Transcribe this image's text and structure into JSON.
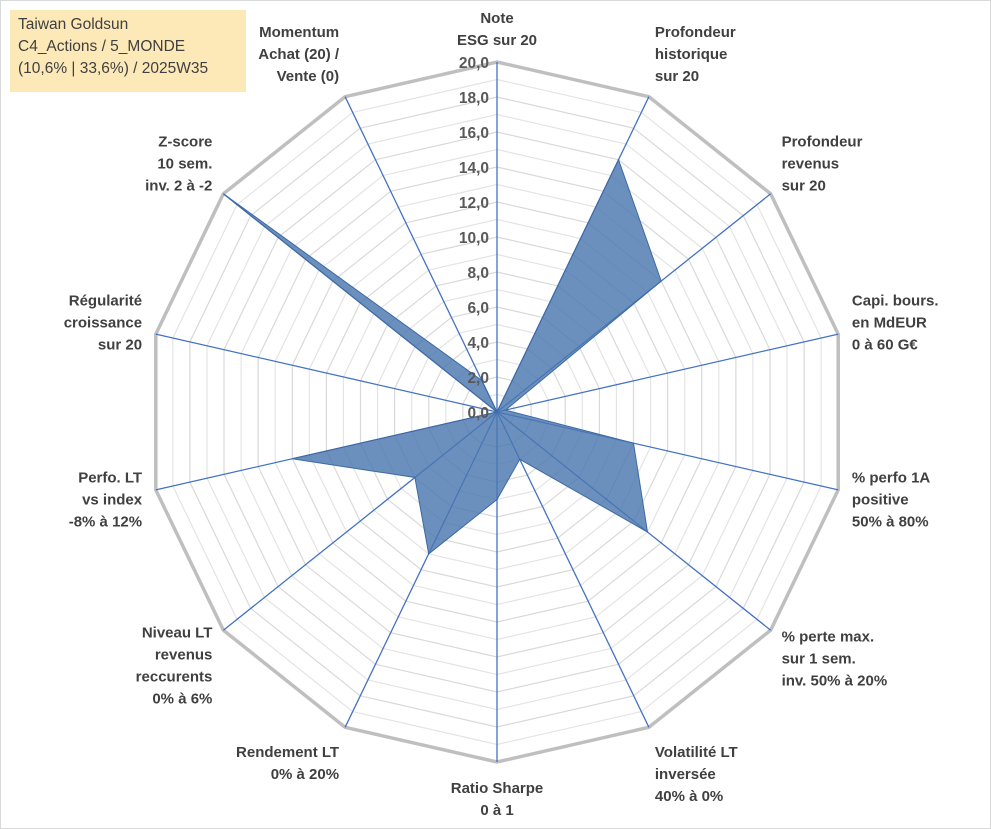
{
  "title_box": {
    "line1": "Taiwan Goldsun",
    "line2": "C4_Actions / 5_MONDE",
    "line3": "(10,6% | 33,6%) / 2025W35"
  },
  "chart_data": {
    "type": "radar",
    "title": "Taiwan Goldsun",
    "rlim": [
      0,
      20
    ],
    "ticks": [
      "0,0",
      "2,0",
      "4,0",
      "6,0",
      "8,0",
      "10,0",
      "12,0",
      "14,0",
      "16,0",
      "18,0",
      "20,0"
    ],
    "grid": true,
    "axes": [
      [
        "Note",
        "ESG sur 20"
      ],
      [
        "Profondeur",
        "historique",
        "sur 20"
      ],
      [
        "Profondeur",
        "revenus",
        "sur 20"
      ],
      [
        "Capi. bours.",
        "en MdEUR",
        "0 à 60 G€"
      ],
      [
        "% perfo 1A",
        "positive",
        "50% à 80%"
      ],
      [
        "% perte max.",
        "sur 1 sem.",
        "inv. 50% à 20%"
      ],
      [
        "Volatilité LT",
        "inversée",
        "40% à 0%"
      ],
      [
        "Ratio Sharpe",
        "0 à 1"
      ],
      [
        "Rendement LT",
        "0% à 20%"
      ],
      [
        "Niveau LT",
        "revenus",
        "reccurents",
        "0% à 6%"
      ],
      [
        "Perfo. LT",
        "vs index",
        "-8% à 12%"
      ],
      [
        "Régularité",
        "croissance",
        "sur 20"
      ],
      [
        "Z-score",
        "10 sem.",
        "inv. 2 à -2"
      ],
      [
        "Momentum",
        "Achat (20) /",
        "Vente (0)"
      ]
    ],
    "series": [
      {
        "values": [
          0,
          16,
          12,
          0.5,
          8,
          11,
          3,
          5,
          9,
          6,
          12,
          0,
          20,
          2
        ],
        "color": "#4a78b0"
      }
    ]
  }
}
